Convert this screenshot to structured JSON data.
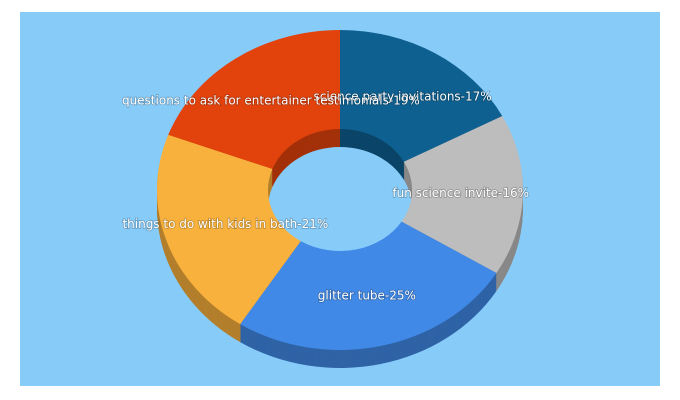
{
  "chart_data": {
    "type": "donut3d",
    "labels": [
      "science party invitations-17%",
      "fun science invite-16%",
      "glitter tube-25%",
      "things to do with kids in bath-21%",
      "questions to ask for entertainer testimonials-19%"
    ],
    "values": [
      17,
      16,
      25,
      21,
      19
    ],
    "colors": [
      "#0e6090",
      "#bdbdbd",
      "#4189e6",
      "#f9b13d",
      "#e2420c"
    ]
  }
}
